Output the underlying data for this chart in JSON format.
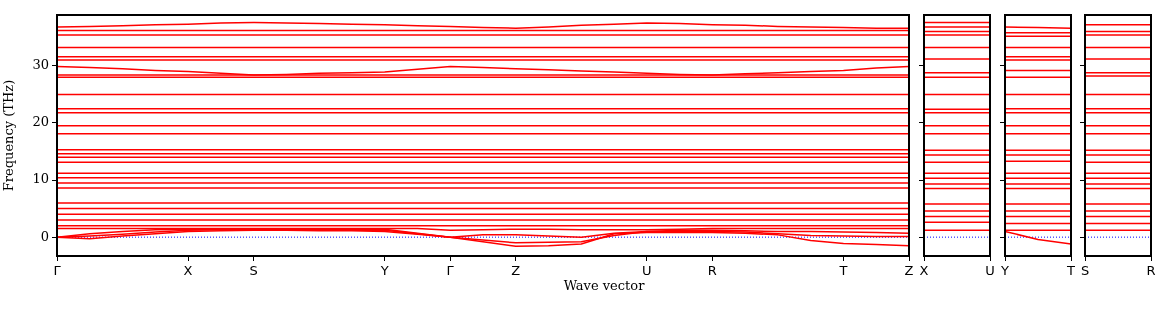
{
  "chart_data": [
    {
      "type": "line",
      "xlabel": "Wave vector",
      "ylabel": "Frequency (THz)",
      "ylim": [
        -3.3,
        38.9
      ],
      "yticks": [
        0,
        10,
        20,
        30
      ],
      "line_style": "solid",
      "marker": "none",
      "ref_lines": [
        {
          "axis": "y",
          "value": 0,
          "color": "#0000ff",
          "line_style": "dotted"
        }
      ],
      "categories": [
        "Γ",
        null,
        null,
        null,
        "X",
        null,
        "S",
        null,
        null,
        null,
        "Y",
        null,
        "Γ",
        null,
        "Z",
        null,
        null,
        null,
        "U",
        null,
        "R",
        null,
        null,
        null,
        "T",
        null,
        "Z"
      ],
      "series": [
        {
          "color": "#ff0000",
          "values": [
            36.8,
            36.9,
            37.0,
            37.2,
            37.3,
            37.5,
            37.6,
            37.5,
            37.4,
            37.3,
            37.2,
            37.0,
            36.9,
            36.7,
            36.6,
            36.8,
            37.1,
            37.3,
            37.5,
            37.4,
            37.2,
            37.1,
            36.9,
            36.8,
            36.7,
            36.6,
            36.6
          ]
        },
        {
          "color": "#ff0000",
          "values": [
            36.2,
            36.2,
            36.2,
            36.2,
            36.2,
            36.2,
            36.2,
            36.2,
            36.2,
            36.2,
            36.2,
            36.2,
            36.2,
            36.2,
            36.2,
            36.2,
            36.2,
            36.2,
            36.2,
            36.2,
            36.2,
            36.2,
            36.2,
            36.2,
            36.2,
            36.2,
            36.2
          ]
        },
        {
          "color": "#ff0000",
          "values": [
            35.4,
            35.4,
            35.4,
            35.4,
            35.4,
            35.4,
            35.4,
            35.4,
            35.4,
            35.4,
            35.4,
            35.4,
            35.4,
            35.4,
            35.4,
            35.4,
            35.4,
            35.4,
            35.4,
            35.4,
            35.4,
            35.4,
            35.4,
            35.4,
            35.4,
            35.4,
            35.4
          ]
        },
        {
          "color": "#ff0000",
          "values": [
            33.2,
            33.2,
            33.2,
            33.2,
            33.2,
            33.2,
            33.2,
            33.2,
            33.2,
            33.2,
            33.2,
            33.2,
            33.2,
            33.2,
            33.2,
            33.2,
            33.2,
            33.2,
            33.2,
            33.2,
            33.2,
            33.2,
            33.2,
            33.2,
            33.2,
            33.2,
            33.2
          ]
        },
        {
          "color": "#ff0000",
          "values": [
            31.6,
            31.6,
            31.6,
            31.6,
            31.6,
            31.6,
            31.6,
            31.6,
            31.6,
            31.6,
            31.6,
            31.6,
            31.6,
            31.6,
            31.6,
            31.6,
            31.6,
            31.6,
            31.6,
            31.6,
            31.6,
            31.6,
            31.6,
            31.6,
            31.6,
            31.6,
            31.6
          ]
        },
        {
          "color": "#ff0000",
          "values": [
            31.0,
            31.0,
            31.0,
            31.0,
            31.0,
            31.0,
            31.0,
            31.0,
            31.0,
            31.0,
            31.0,
            31.0,
            31.0,
            31.0,
            31.0,
            31.0,
            31.0,
            31.0,
            31.0,
            31.0,
            31.0,
            31.0,
            31.0,
            31.0,
            31.0,
            31.0,
            31.0
          ]
        },
        {
          "color": "#ff0000",
          "values": [
            29.9,
            29.7,
            29.5,
            29.2,
            29.0,
            28.7,
            28.4,
            28.5,
            28.7,
            28.8,
            28.9,
            29.4,
            29.9,
            29.7,
            29.5,
            29.3,
            29.1,
            28.9,
            28.7,
            28.5,
            28.4,
            28.6,
            28.8,
            29.0,
            29.2,
            29.6,
            29.9
          ]
        },
        {
          "color": "#ff0000",
          "values": [
            28.4,
            28.4,
            28.4,
            28.4,
            28.4,
            28.4,
            28.4,
            28.4,
            28.4,
            28.4,
            28.4,
            28.4,
            28.4,
            28.4,
            28.4,
            28.4,
            28.4,
            28.4,
            28.4,
            28.4,
            28.4,
            28.4,
            28.4,
            28.4,
            28.4,
            28.4,
            28.4
          ]
        },
        {
          "color": "#ff0000",
          "values": [
            28.0,
            28.0,
            28.0,
            28.0,
            28.0,
            28.0,
            28.0,
            28.0,
            28.0,
            28.0,
            28.0,
            28.0,
            28.0,
            28.0,
            28.0,
            28.0,
            28.0,
            28.0,
            28.0,
            28.0,
            28.0,
            28.0,
            28.0,
            28.0,
            28.0,
            28.0,
            28.0
          ]
        },
        {
          "color": "#ff0000",
          "values": [
            25.0,
            25.0,
            25.0,
            25.0,
            25.0,
            25.0,
            25.0,
            25.0,
            25.0,
            25.0,
            25.0,
            25.0,
            25.0,
            25.0,
            25.0,
            25.0,
            25.0,
            25.0,
            25.0,
            25.0,
            25.0,
            25.0,
            25.0,
            25.0,
            25.0,
            25.0,
            25.0
          ]
        },
        {
          "color": "#ff0000",
          "values": [
            22.5,
            22.5,
            22.5,
            22.5,
            22.5,
            22.5,
            22.5,
            22.5,
            22.5,
            22.5,
            22.5,
            22.5,
            22.5,
            22.5,
            22.5,
            22.5,
            22.5,
            22.5,
            22.5,
            22.5,
            22.5,
            22.5,
            22.5,
            22.5,
            22.5,
            22.5,
            22.5
          ]
        },
        {
          "color": "#ff0000",
          "values": [
            21.8,
            21.8,
            21.8,
            21.8,
            21.8,
            21.8,
            21.8,
            21.8,
            21.8,
            21.8,
            21.8,
            21.8,
            21.8,
            21.8,
            21.8,
            21.8,
            21.8,
            21.8,
            21.8,
            21.8,
            21.8,
            21.8,
            21.8,
            21.8,
            21.8,
            21.8,
            21.8
          ]
        },
        {
          "color": "#ff0000",
          "values": [
            19.5,
            19.5,
            19.5,
            19.5,
            19.5,
            19.5,
            19.5,
            19.5,
            19.5,
            19.5,
            19.5,
            19.5,
            19.5,
            19.5,
            19.5,
            19.5,
            19.5,
            19.5,
            19.5,
            19.5,
            19.5,
            19.5,
            19.5,
            19.5,
            19.5,
            19.5,
            19.5
          ]
        },
        {
          "color": "#ff0000",
          "values": [
            18.1,
            18.1,
            18.1,
            18.1,
            18.1,
            18.1,
            18.1,
            18.1,
            18.1,
            18.1,
            18.1,
            18.1,
            18.1,
            18.1,
            18.1,
            18.1,
            18.1,
            18.1,
            18.1,
            18.1,
            18.1,
            18.1,
            18.1,
            18.1,
            18.1,
            18.1,
            18.1
          ]
        },
        {
          "color": "#ff0000",
          "values": [
            15.3,
            15.3,
            15.3,
            15.3,
            15.3,
            15.3,
            15.3,
            15.3,
            15.3,
            15.3,
            15.3,
            15.3,
            15.3,
            15.3,
            15.3,
            15.3,
            15.3,
            15.3,
            15.3,
            15.3,
            15.3,
            15.3,
            15.3,
            15.3,
            15.3,
            15.3,
            15.3
          ]
        },
        {
          "color": "#ff0000",
          "values": [
            14.6,
            14.6,
            14.6,
            14.6,
            14.6,
            14.6,
            14.6,
            14.6,
            14.6,
            14.6,
            14.6,
            14.6,
            14.6,
            14.6,
            14.6,
            14.6,
            14.6,
            14.6,
            14.6,
            14.6,
            14.6,
            14.6,
            14.6,
            14.6,
            14.6,
            14.6,
            14.6
          ]
        },
        {
          "color": "#ff0000",
          "values": [
            14.0,
            14.0,
            14.0,
            14.0,
            14.0,
            14.0,
            14.0,
            14.0,
            14.0,
            14.0,
            14.0,
            14.0,
            14.0,
            14.0,
            14.0,
            14.0,
            14.0,
            14.0,
            14.0,
            14.0,
            14.0,
            14.0,
            14.0,
            14.0,
            14.0,
            14.0,
            14.0
          ]
        },
        {
          "color": "#ff0000",
          "values": [
            13.1,
            13.1,
            13.1,
            13.1,
            13.1,
            13.1,
            13.1,
            13.1,
            13.1,
            13.1,
            13.1,
            13.1,
            13.1,
            13.1,
            13.1,
            13.1,
            13.1,
            13.1,
            13.1,
            13.1,
            13.1,
            13.1,
            13.1,
            13.1,
            13.1,
            13.1,
            13.1
          ]
        },
        {
          "color": "#ff0000",
          "values": [
            11.2,
            11.2,
            11.2,
            11.2,
            11.2,
            11.2,
            11.2,
            11.2,
            11.2,
            11.2,
            11.2,
            11.2,
            11.2,
            11.2,
            11.2,
            11.2,
            11.2,
            11.2,
            11.2,
            11.2,
            11.2,
            11.2,
            11.2,
            11.2,
            11.2,
            11.2,
            11.2
          ]
        },
        {
          "color": "#ff0000",
          "values": [
            10.4,
            10.4,
            10.4,
            10.4,
            10.4,
            10.4,
            10.4,
            10.4,
            10.4,
            10.4,
            10.4,
            10.4,
            10.4,
            10.4,
            10.4,
            10.4,
            10.4,
            10.4,
            10.4,
            10.4,
            10.4,
            10.4,
            10.4,
            10.4,
            10.4,
            10.4,
            10.4
          ]
        },
        {
          "color": "#ff0000",
          "values": [
            9.5,
            9.5,
            9.5,
            9.5,
            9.5,
            9.5,
            9.5,
            9.5,
            9.5,
            9.5,
            9.5,
            9.5,
            9.5,
            9.5,
            9.5,
            9.5,
            9.5,
            9.5,
            9.5,
            9.5,
            9.5,
            9.5,
            9.5,
            9.5,
            9.5,
            9.5,
            9.5
          ]
        },
        {
          "color": "#ff0000",
          "values": [
            8.6,
            8.6,
            8.6,
            8.6,
            8.6,
            8.6,
            8.6,
            8.6,
            8.6,
            8.6,
            8.6,
            8.6,
            8.6,
            8.6,
            8.6,
            8.6,
            8.6,
            8.6,
            8.6,
            8.6,
            8.6,
            8.6,
            8.6,
            8.6,
            8.6,
            8.6,
            8.6
          ]
        },
        {
          "color": "#ff0000",
          "values": [
            6.0,
            6.0,
            6.0,
            6.0,
            6.0,
            6.0,
            6.0,
            6.0,
            6.0,
            6.0,
            6.0,
            6.0,
            6.0,
            6.0,
            6.0,
            6.0,
            6.0,
            6.0,
            6.0,
            6.0,
            6.0,
            6.0,
            6.0,
            6.0,
            6.0,
            6.0,
            6.0
          ]
        },
        {
          "color": "#ff0000",
          "values": [
            5.0,
            5.0,
            5.0,
            5.0,
            5.0,
            5.0,
            5.0,
            5.0,
            5.0,
            5.0,
            5.0,
            5.0,
            5.0,
            5.0,
            5.0,
            5.0,
            5.0,
            5.0,
            5.0,
            5.0,
            5.0,
            5.0,
            5.0,
            5.0,
            5.0,
            5.0,
            5.0
          ]
        },
        {
          "color": "#ff0000",
          "values": [
            4.0,
            4.0,
            4.0,
            4.0,
            4.0,
            4.0,
            4.0,
            4.0,
            4.0,
            4.0,
            4.0,
            4.0,
            4.0,
            4.0,
            4.0,
            4.0,
            4.0,
            4.0,
            4.0,
            4.0,
            4.0,
            4.0,
            4.0,
            4.0,
            4.0,
            4.0,
            4.0
          ]
        },
        {
          "color": "#ff0000",
          "values": [
            3.0,
            3.0,
            3.0,
            3.0,
            3.0,
            3.0,
            3.0,
            3.0,
            3.0,
            3.0,
            3.0,
            3.0,
            3.0,
            3.0,
            3.0,
            3.0,
            3.0,
            3.0,
            3.0,
            3.0,
            3.0,
            3.0,
            3.0,
            3.0,
            3.0,
            3.0,
            3.0
          ]
        },
        {
          "color": "#ff0000",
          "values": [
            2.0,
            2.0,
            2.0,
            2.0,
            2.0,
            2.0,
            2.0,
            2.0,
            2.0,
            2.0,
            2.0,
            2.0,
            2.0,
            2.0,
            2.0,
            2.0,
            2.0,
            2.0,
            2.0,
            2.0,
            2.0,
            2.0,
            2.0,
            2.0,
            2.0,
            2.0,
            2.0
          ]
        },
        {
          "color": "#ff0000",
          "values": [
            1.5,
            1.5,
            1.5,
            1.5,
            1.5,
            1.5,
            1.5,
            1.5,
            1.5,
            1.5,
            1.5,
            1.5,
            1.2,
            1.3,
            1.4,
            1.4,
            1.3,
            1.3,
            1.3,
            1.4,
            1.5,
            1.5,
            1.5,
            1.5,
            1.5,
            1.5,
            1.5
          ]
        },
        {
          "color": "#ff0000",
          "values": [
            0,
            0.6,
            1.0,
            1.3,
            1.4,
            1.4,
            1.4,
            1.4,
            1.4,
            1.4,
            1.4,
            0.7,
            0,
            -0.5,
            -1.0,
            -0.9,
            -0.8,
            0.3,
            1.0,
            1.2,
            1.2,
            1.1,
            1.0,
            1.0,
            0.9,
            0.8,
            0.7
          ]
        },
        {
          "color": "#ff0000",
          "values": [
            0,
            0.2,
            0.5,
            0.9,
            1.2,
            1.3,
            1.3,
            1.3,
            1.2,
            1.2,
            1.2,
            0.6,
            0,
            0.4,
            0.4,
            0.2,
            0,
            0.7,
            1.0,
            1.0,
            1.0,
            0.9,
            0.6,
            0.3,
            0.2,
            0.1,
            0.1
          ]
        },
        {
          "color": "#ff0000",
          "values": [
            0,
            -0.3,
            0.2,
            0.6,
            1.0,
            1.1,
            1.2,
            1.2,
            1.1,
            1.1,
            1.0,
            0.5,
            0,
            -0.8,
            -1.6,
            -1.5,
            -1.2,
            0.6,
            0.8,
            0.8,
            0.8,
            0.7,
            0.4,
            -0.6,
            -1.1,
            -1.3,
            -1.5
          ]
        }
      ]
    },
    {
      "type": "line",
      "ylim": [
        -3.3,
        38.9
      ],
      "yticks": [
        0,
        10,
        20,
        30
      ],
      "tick_labels": "x",
      "line_style": "solid",
      "marker": "none",
      "ref_lines": [
        {
          "axis": "y",
          "value": 0,
          "color": "#0000ff",
          "line_style": "dotted"
        }
      ],
      "categories": [
        "X",
        null,
        "U"
      ],
      "series": [
        {
          "color": "#ff0000",
          "values": [
            37.6,
            37.6,
            37.6
          ]
        },
        {
          "color": "#ff0000",
          "values": [
            36.8,
            36.8,
            36.8
          ]
        },
        {
          "color": "#ff0000",
          "values": [
            36.0,
            36.0,
            36.0
          ]
        },
        {
          "color": "#ff0000",
          "values": [
            35.4,
            35.4,
            35.4
          ]
        },
        {
          "color": "#ff0000",
          "values": [
            33.2,
            33.2,
            33.2
          ]
        },
        {
          "color": "#ff0000",
          "values": [
            31.2,
            31.2,
            31.2
          ]
        },
        {
          "color": "#ff0000",
          "values": [
            28.8,
            28.8,
            28.8
          ]
        },
        {
          "color": "#ff0000",
          "values": [
            28.0,
            28.0,
            28.0
          ]
        },
        {
          "color": "#ff0000",
          "values": [
            25.0,
            25.0,
            25.0
          ]
        },
        {
          "color": "#ff0000",
          "values": [
            22.4,
            22.4,
            22.4
          ]
        },
        {
          "color": "#ff0000",
          "values": [
            21.8,
            21.8,
            21.8
          ]
        },
        {
          "color": "#ff0000",
          "values": [
            19.5,
            19.5,
            19.5
          ]
        },
        {
          "color": "#ff0000",
          "values": [
            18.1,
            18.1,
            18.1
          ]
        },
        {
          "color": "#ff0000",
          "values": [
            15.2,
            15.2,
            15.2
          ]
        },
        {
          "color": "#ff0000",
          "values": [
            14.4,
            14.4,
            14.4
          ]
        },
        {
          "color": "#ff0000",
          "values": [
            13.1,
            13.1,
            13.1
          ]
        },
        {
          "color": "#ff0000",
          "values": [
            11.2,
            11.2,
            11.2
          ]
        },
        {
          "color": "#ff0000",
          "values": [
            10.3,
            10.3,
            10.3
          ]
        },
        {
          "color": "#ff0000",
          "values": [
            9.3,
            9.3,
            9.3
          ]
        },
        {
          "color": "#ff0000",
          "values": [
            8.5,
            8.5,
            8.5
          ]
        },
        {
          "color": "#ff0000",
          "values": [
            5.8,
            5.8,
            5.8
          ]
        },
        {
          "color": "#ff0000",
          "values": [
            4.6,
            4.6,
            4.6
          ]
        },
        {
          "color": "#ff0000",
          "values": [
            3.6,
            3.6,
            3.6
          ]
        },
        {
          "color": "#ff0000",
          "values": [
            2.6,
            2.6,
            2.6
          ]
        },
        {
          "color": "#ff0000",
          "values": [
            1.2,
            1.2,
            1.2
          ]
        }
      ]
    },
    {
      "type": "line",
      "ylim": [
        -3.3,
        38.9
      ],
      "yticks": [
        0,
        10,
        20,
        30
      ],
      "tick_labels": "x",
      "line_style": "solid",
      "marker": "none",
      "ref_lines": [
        {
          "axis": "y",
          "value": 0,
          "color": "#0000ff",
          "line_style": "dotted"
        }
      ],
      "categories": [
        "Y",
        null,
        "T"
      ],
      "series": [
        {
          "color": "#ff0000",
          "values": [
            36.8,
            36.7,
            36.6
          ]
        },
        {
          "color": "#ff0000",
          "values": [
            35.8,
            35.8,
            35.8
          ]
        },
        {
          "color": "#ff0000",
          "values": [
            35.2,
            35.2,
            35.2
          ]
        },
        {
          "color": "#ff0000",
          "values": [
            33.2,
            33.2,
            33.2
          ]
        },
        {
          "color": "#ff0000",
          "values": [
            31.6,
            31.6,
            31.6
          ]
        },
        {
          "color": "#ff0000",
          "values": [
            31.0,
            31.0,
            31.0
          ]
        },
        {
          "color": "#ff0000",
          "values": [
            29.2,
            29.2,
            29.2
          ]
        },
        {
          "color": "#ff0000",
          "values": [
            28.0,
            28.0,
            28.0
          ]
        },
        {
          "color": "#ff0000",
          "values": [
            25.0,
            25.0,
            25.0
          ]
        },
        {
          "color": "#ff0000",
          "values": [
            22.5,
            22.5,
            22.5
          ]
        },
        {
          "color": "#ff0000",
          "values": [
            21.8,
            21.8,
            21.8
          ]
        },
        {
          "color": "#ff0000",
          "values": [
            19.5,
            19.5,
            19.5
          ]
        },
        {
          "color": "#ff0000",
          "values": [
            18.1,
            18.1,
            18.1
          ]
        },
        {
          "color": "#ff0000",
          "values": [
            15.2,
            15.2,
            15.2
          ]
        },
        {
          "color": "#ff0000",
          "values": [
            14.4,
            14.4,
            14.4
          ]
        },
        {
          "color": "#ff0000",
          "values": [
            13.3,
            13.3,
            13.3
          ]
        },
        {
          "color": "#ff0000",
          "values": [
            11.2,
            11.2,
            11.2
          ]
        },
        {
          "color": "#ff0000",
          "values": [
            10.3,
            10.3,
            10.3
          ]
        },
        {
          "color": "#ff0000",
          "values": [
            9.3,
            9.3,
            9.3
          ]
        },
        {
          "color": "#ff0000",
          "values": [
            8.5,
            8.5,
            8.5
          ]
        },
        {
          "color": "#ff0000",
          "values": [
            5.8,
            5.8,
            5.8
          ]
        },
        {
          "color": "#ff0000",
          "values": [
            4.6,
            4.6,
            4.6
          ]
        },
        {
          "color": "#ff0000",
          "values": [
            3.6,
            3.6,
            3.6
          ]
        },
        {
          "color": "#ff0000",
          "values": [
            2.4,
            2.4,
            2.4
          ]
        },
        {
          "color": "#ff0000",
          "values": [
            1.2,
            1.2,
            1.2
          ]
        },
        {
          "color": "#ff0000",
          "values": [
            1.0,
            -0.4,
            -1.2
          ]
        }
      ]
    },
    {
      "type": "line",
      "ylim": [
        -3.3,
        38.9
      ],
      "yticks": [
        0,
        10,
        20,
        30
      ],
      "tick_labels": "x",
      "line_style": "solid",
      "marker": "none",
      "ref_lines": [
        {
          "axis": "y",
          "value": 0,
          "color": "#0000ff",
          "line_style": "dotted"
        }
      ],
      "categories": [
        "S",
        null,
        "R"
      ],
      "series": [
        {
          "color": "#ff0000",
          "values": [
            37.2,
            37.2,
            37.2
          ]
        },
        {
          "color": "#ff0000",
          "values": [
            36.0,
            36.0,
            36.0
          ]
        },
        {
          "color": "#ff0000",
          "values": [
            35.4,
            35.4,
            35.4
          ]
        },
        {
          "color": "#ff0000",
          "values": [
            33.2,
            33.2,
            33.2
          ]
        },
        {
          "color": "#ff0000",
          "values": [
            31.2,
            31.2,
            31.2
          ]
        },
        {
          "color": "#ff0000",
          "values": [
            28.8,
            28.8,
            28.8
          ]
        },
        {
          "color": "#ff0000",
          "values": [
            28.2,
            28.2,
            28.2
          ]
        },
        {
          "color": "#ff0000",
          "values": [
            25.0,
            25.0,
            25.0
          ]
        },
        {
          "color": "#ff0000",
          "values": [
            22.5,
            22.5,
            22.5
          ]
        },
        {
          "color": "#ff0000",
          "values": [
            21.8,
            21.8,
            21.8
          ]
        },
        {
          "color": "#ff0000",
          "values": [
            19.5,
            19.5,
            19.5
          ]
        },
        {
          "color": "#ff0000",
          "values": [
            18.1,
            18.1,
            18.1
          ]
        },
        {
          "color": "#ff0000",
          "values": [
            15.2,
            15.2,
            15.2
          ]
        },
        {
          "color": "#ff0000",
          "values": [
            14.4,
            14.4,
            14.4
          ]
        },
        {
          "color": "#ff0000",
          "values": [
            13.1,
            13.1,
            13.1
          ]
        },
        {
          "color": "#ff0000",
          "values": [
            11.2,
            11.2,
            11.2
          ]
        },
        {
          "color": "#ff0000",
          "values": [
            10.3,
            10.3,
            10.3
          ]
        },
        {
          "color": "#ff0000",
          "values": [
            9.3,
            9.3,
            9.3
          ]
        },
        {
          "color": "#ff0000",
          "values": [
            8.5,
            8.5,
            8.5
          ]
        },
        {
          "color": "#ff0000",
          "values": [
            5.8,
            5.8,
            5.8
          ]
        },
        {
          "color": "#ff0000",
          "values": [
            4.6,
            4.6,
            4.6
          ]
        },
        {
          "color": "#ff0000",
          "values": [
            3.6,
            3.6,
            3.6
          ]
        },
        {
          "color": "#ff0000",
          "values": [
            2.4,
            2.4,
            2.4
          ]
        },
        {
          "color": "#ff0000",
          "values": [
            1.2,
            1.2,
            1.2
          ]
        }
      ]
    }
  ]
}
